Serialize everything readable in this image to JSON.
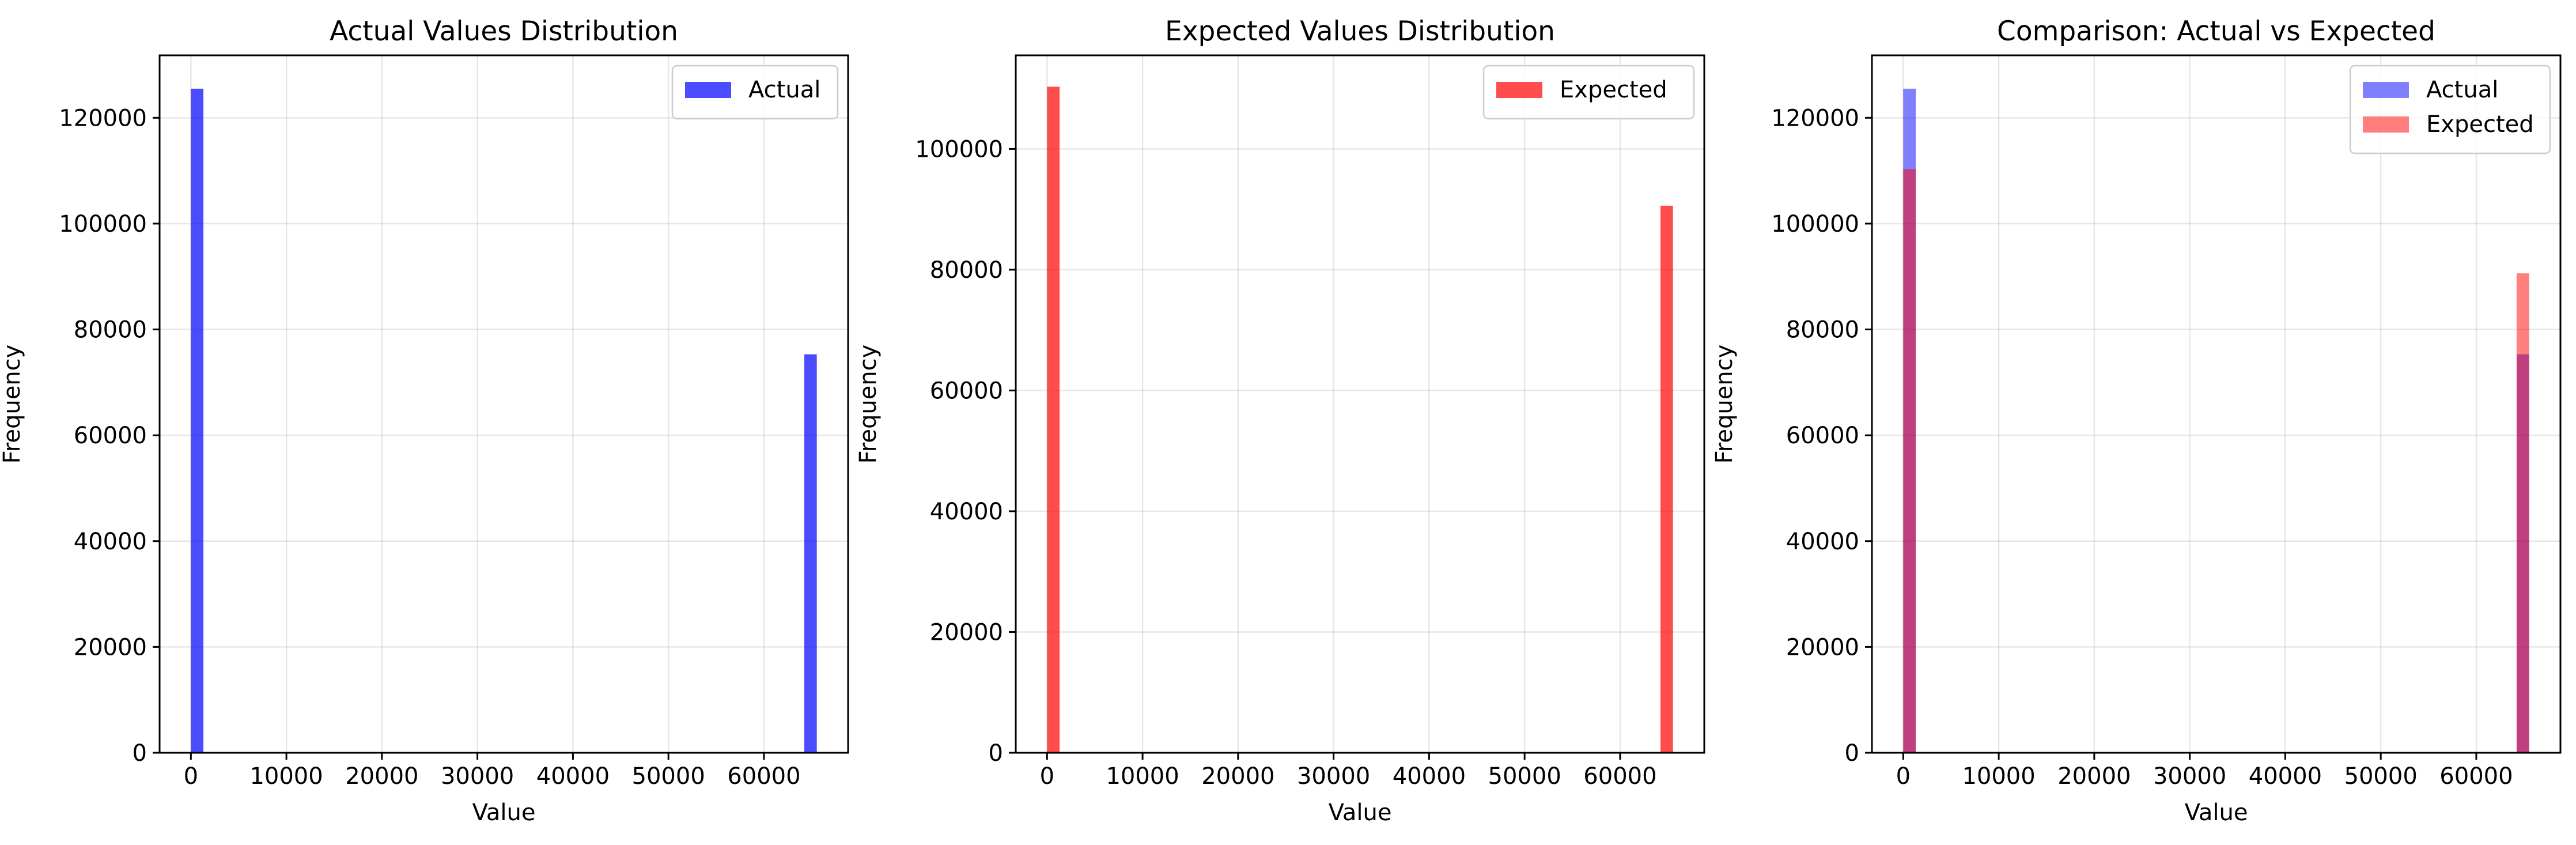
{
  "chart_data": [
    {
      "type": "bar",
      "title": "Actual Values Distribution",
      "xlabel": "Value",
      "ylabel": "Frequency",
      "xlim": [
        -3277,
        68812
      ],
      "ylim": [
        0,
        131800
      ],
      "xticks": [
        "0",
        "10000",
        "20000",
        "30000",
        "40000",
        "50000",
        "60000"
      ],
      "yticks": [
        "0",
        "20000",
        "40000",
        "60000",
        "80000",
        "100000",
        "120000"
      ],
      "grid": true,
      "legend_position": "upper right",
      "series": [
        {
          "name": "Actual",
          "color": "#0000ff",
          "opacity": 0.7,
          "bars": [
            {
              "x0": 0,
              "x1": 1311,
              "value": 125500
            },
            {
              "x0": 64224,
              "x1": 65535,
              "value": 75300
            }
          ]
        }
      ]
    },
    {
      "type": "bar",
      "title": "Expected Values Distribution",
      "xlabel": "Value",
      "ylabel": "Frequency",
      "xlim": [
        -3277,
        68812
      ],
      "ylim": [
        0,
        115500
      ],
      "xticks": [
        "0",
        "10000",
        "20000",
        "30000",
        "40000",
        "50000",
        "60000"
      ],
      "yticks": [
        "0",
        "20000",
        "40000",
        "60000",
        "80000",
        "100000"
      ],
      "grid": true,
      "legend_position": "upper right",
      "series": [
        {
          "name": "Expected",
          "color": "#ff0000",
          "opacity": 0.7,
          "bars": [
            {
              "x0": 0,
              "x1": 1311,
              "value": 110300
            },
            {
              "x0": 64224,
              "x1": 65535,
              "value": 90600
            }
          ]
        }
      ]
    },
    {
      "type": "bar",
      "title": "Comparison: Actual vs Expected",
      "xlabel": "Value",
      "ylabel": "Frequency",
      "xlim": [
        -3277,
        68812
      ],
      "ylim": [
        0,
        131800
      ],
      "xticks": [
        "0",
        "10000",
        "20000",
        "30000",
        "40000",
        "50000",
        "60000"
      ],
      "yticks": [
        "0",
        "20000",
        "40000",
        "60000",
        "80000",
        "100000",
        "120000"
      ],
      "grid": true,
      "legend_position": "upper right",
      "series": [
        {
          "name": "Actual",
          "color": "#0000ff",
          "opacity": 0.5,
          "bars": [
            {
              "x0": 0,
              "x1": 1311,
              "value": 125500
            },
            {
              "x0": 64224,
              "x1": 65535,
              "value": 75300
            }
          ]
        },
        {
          "name": "Expected",
          "color": "#ff0000",
          "opacity": 0.5,
          "bars": [
            {
              "x0": 0,
              "x1": 1311,
              "value": 110300
            },
            {
              "x0": 64224,
              "x1": 65535,
              "value": 90600
            }
          ]
        }
      ]
    }
  ]
}
